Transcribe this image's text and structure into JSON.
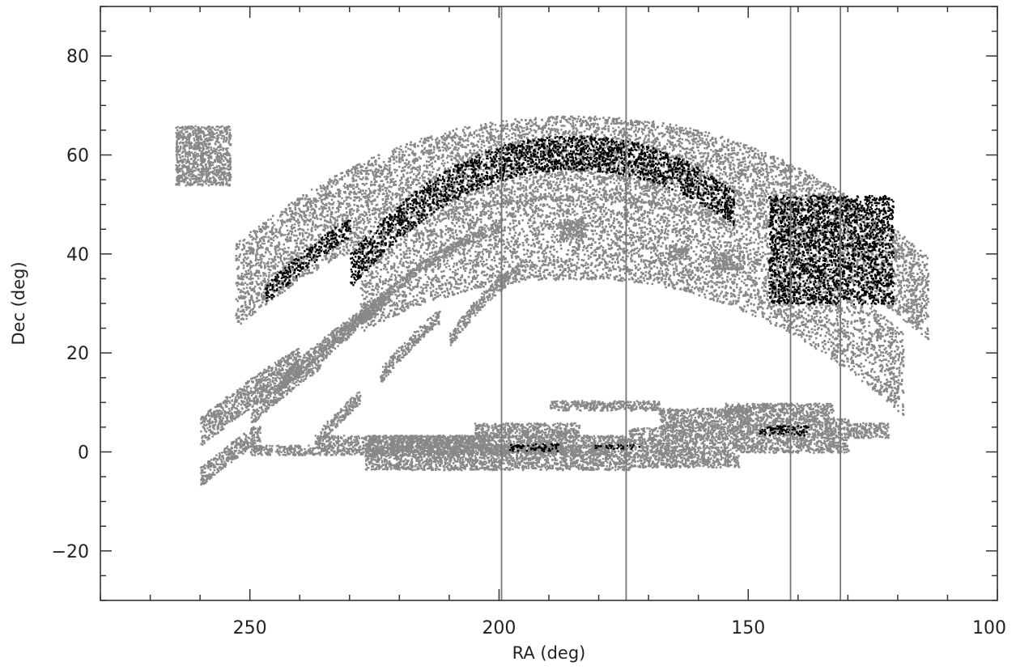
{
  "chart_data": {
    "type": "scatter",
    "title": "",
    "xlabel": "RA (deg)",
    "ylabel": "Dec (deg)",
    "xlim": [
      280,
      100
    ],
    "ylim": [
      -30,
      90
    ],
    "x_ticks": [
      "250",
      "200",
      "150",
      "100"
    ],
    "y_ticks": [
      "−20",
      "0",
      "20",
      "40",
      "60",
      "80"
    ],
    "x_tick_values": [
      250,
      200,
      150,
      100
    ],
    "y_tick_values": [
      -20,
      0,
      20,
      40,
      60,
      80
    ],
    "x_minor_step": 10,
    "y_minor_step": 5,
    "grid": false,
    "vertical_lines": [
      199.5,
      174.5,
      141.5,
      131.5
    ],
    "series": [
      {
        "color": "#888888",
        "regions": [
          {
            "shape": "arc",
            "center_ra": 185,
            "x_from": 253,
            "x_to": 114,
            "mid_outer": 68,
            "mid_inner": 51,
            "power": 2.2
          },
          {
            "shape": "arc",
            "center_ra": 185,
            "x_from": 228,
            "x_to": 119,
            "mid_outer": 52,
            "mid_inner": 35,
            "power": 2.2
          },
          {
            "shape": "arc",
            "center_ra": 185,
            "x_from": 231,
            "x_to": 200,
            "mid_outer": 48.5,
            "mid_inner": 46.5,
            "power": 2.2
          },
          {
            "shape": "arc",
            "center_ra": 185,
            "x_from": 236,
            "x_to": 222,
            "mid_outer": 46,
            "mid_inner": 43,
            "power": 2.2
          },
          {
            "shape": "arc",
            "center_ra": 185,
            "x_from": 244,
            "x_to": 225,
            "mid_outer": 42,
            "mid_inner": 39,
            "power": 2.2
          },
          {
            "shape": "arc",
            "center_ra": 185,
            "x_from": 260,
            "x_to": 240,
            "mid_outer": 36,
            "mid_inner": 30,
            "power": 2.2
          },
          {
            "shape": "arc",
            "center_ra": 185,
            "x_from": 260,
            "x_to": 248,
            "mid_outer": 26,
            "mid_inner": 22,
            "power": 2.2
          },
          {
            "shape": "arc",
            "center_ra": 185,
            "x_from": 250,
            "x_to": 236,
            "mid_outer": 36,
            "mid_inner": 33,
            "power": 2.2
          },
          {
            "shape": "arc",
            "center_ra": 185,
            "x_from": 236,
            "x_to": 228,
            "mid_outer": 30,
            "mid_inner": 27,
            "power": 2.2
          },
          {
            "shape": "arc",
            "center_ra": 185,
            "x_from": 224,
            "x_to": 212,
            "mid_outer": 39,
            "mid_inner": 36,
            "power": 2.2
          },
          {
            "shape": "arc",
            "center_ra": 185,
            "x_from": 210,
            "x_to": 196,
            "mid_outer": 41,
            "mid_inner": 38,
            "power": 2.2
          },
          {
            "shape": "box",
            "x_from": 265,
            "x_to": 254,
            "y_from": 54,
            "y_to": 66
          },
          {
            "shape": "box",
            "x_from": 188,
            "x_to": 183,
            "y_from": 43,
            "y_to": 47
          },
          {
            "shape": "box",
            "x_from": 166,
            "x_to": 162,
            "y_from": 39,
            "y_to": 42
          },
          {
            "shape": "box",
            "x_from": 157,
            "x_to": 151,
            "y_from": 37,
            "y_to": 40
          },
          {
            "shape": "box",
            "x_from": 250,
            "x_to": 178,
            "y_from": -0.5,
            "y_to": 1.5
          },
          {
            "shape": "box",
            "x_from": 237,
            "x_to": 202,
            "y_from": 1.5,
            "y_to": 3.5
          },
          {
            "shape": "box",
            "x_from": 227,
            "x_to": 174,
            "y_from": -3.5,
            "y_to": 3.5
          },
          {
            "shape": "box",
            "x_from": 205,
            "x_to": 184,
            "y_from": 3,
            "y_to": 6
          },
          {
            "shape": "box",
            "x_from": 174,
            "x_to": 152,
            "y_from": -3,
            "y_to": 5
          },
          {
            "shape": "box",
            "x_from": 152,
            "x_to": 130,
            "y_from": 0,
            "y_to": 7
          },
          {
            "shape": "box",
            "x_from": 130,
            "x_to": 122,
            "y_from": 3,
            "y_to": 6
          },
          {
            "shape": "box",
            "x_from": 190,
            "x_to": 168,
            "y_from": 8.5,
            "y_to": 10.5
          },
          {
            "shape": "box",
            "x_from": 168,
            "x_to": 150,
            "y_from": 5,
            "y_to": 9
          },
          {
            "shape": "box",
            "x_from": 155,
            "x_to": 133,
            "y_from": 7,
            "y_to": 10
          }
        ]
      },
      {
        "color": "#000000",
        "regions": [
          {
            "shape": "arc",
            "center_ra": 185,
            "x_from": 247,
            "x_to": 230,
            "mid_outer": 61,
            "mid_inner": 57,
            "power": 2.2
          },
          {
            "shape": "arc",
            "center_ra": 185,
            "x_from": 230,
            "x_to": 153,
            "mid_outer": 64,
            "mid_inner": 57,
            "power": 2.2
          },
          {
            "shape": "box",
            "x_from": 146,
            "x_to": 121,
            "y_from": 30,
            "y_to": 52
          },
          {
            "shape": "box",
            "x_from": 198,
            "x_to": 188,
            "y_from": 0.3,
            "y_to": 1.8
          },
          {
            "shape": "box",
            "x_from": 181,
            "x_to": 172,
            "y_from": 0.8,
            "y_to": 1.6
          },
          {
            "shape": "box",
            "x_from": 148,
            "x_to": 138,
            "y_from": 3.5,
            "y_to": 5.5
          }
        ]
      }
    ]
  }
}
